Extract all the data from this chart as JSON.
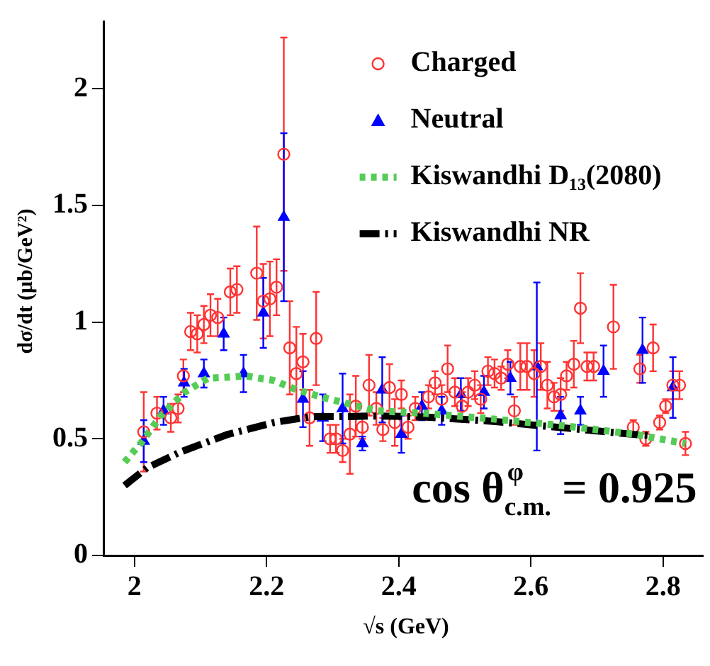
{
  "chart_data": {
    "type": "scatter",
    "xlabel": "√s (GeV)",
    "ylabel": "dσ/dt (μb/GeV²)",
    "xlim": [
      1.953,
      2.86
    ],
    "ylim": [
      0,
      2.29
    ],
    "xticks": [
      2,
      2.2,
      2.4,
      2.6,
      2.8
    ],
    "yticks": [
      0,
      0.5,
      1,
      1.5,
      2
    ],
    "grid": false,
    "legend": "top right",
    "annotations": [
      "cos θ$^{φ}$$_{c.m.}$ = 0.925"
    ],
    "series": [
      {
        "name": "Charged",
        "marker": "circle",
        "color": "#ff3333",
        "x": [
          2.014,
          2.034,
          2.055,
          2.066,
          2.074,
          2.085,
          2.095,
          2.105,
          2.115,
          2.126,
          2.145,
          2.155,
          2.185,
          2.195,
          2.205,
          2.215,
          2.226,
          2.235,
          2.245,
          2.255,
          2.265,
          2.275,
          2.296,
          2.305,
          2.315,
          2.326,
          2.335,
          2.345,
          2.355,
          2.366,
          2.376,
          2.386,
          2.394,
          2.404,
          2.414,
          2.425,
          2.445,
          2.455,
          2.465,
          2.474,
          2.485,
          2.496,
          2.505,
          2.515,
          2.524,
          2.535,
          2.545,
          2.555,
          2.565,
          2.575,
          2.584,
          2.594,
          2.605,
          2.615,
          2.625,
          2.635,
          2.645,
          2.654,
          2.665,
          2.675,
          2.685,
          2.695,
          2.725,
          2.755,
          2.765,
          2.774,
          2.785,
          2.795,
          2.804,
          2.815,
          2.825,
          2.834
        ],
        "values": [
          0.53,
          0.61,
          0.59,
          0.63,
          0.77,
          0.96,
          0.95,
          0.99,
          1.03,
          1.02,
          1.13,
          1.14,
          1.21,
          1.09,
          1.1,
          1.15,
          1.72,
          0.89,
          0.78,
          0.83,
          0.59,
          0.93,
          0.5,
          0.5,
          0.45,
          0.52,
          0.64,
          0.55,
          0.73,
          0.63,
          0.54,
          0.72,
          0.57,
          0.69,
          0.55,
          0.63,
          0.68,
          0.74,
          0.67,
          0.8,
          0.7,
          0.64,
          0.7,
          0.73,
          0.67,
          0.79,
          0.78,
          0.76,
          0.82,
          0.62,
          0.81,
          0.81,
          0.78,
          0.81,
          0.73,
          0.68,
          0.69,
          0.77,
          0.82,
          1.06,
          0.81,
          0.81,
          0.98,
          0.55,
          0.8,
          0.5,
          0.89,
          0.57,
          0.64,
          0.73,
          0.73,
          0.48
        ],
        "errors": [
          0.17,
          0.07,
          0.06,
          0.06,
          0.07,
          0.08,
          0.08,
          0.08,
          0.09,
          0.08,
          0.1,
          0.1,
          0.2,
          0.16,
          0.16,
          0.12,
          0.5,
          0.2,
          0.2,
          0.12,
          0.12,
          0.2,
          0.06,
          0.06,
          0.05,
          0.17,
          0.13,
          0.05,
          0.13,
          0.07,
          0.05,
          0.1,
          0.1,
          0.06,
          0.05,
          0.05,
          0.05,
          0.05,
          0.06,
          0.1,
          0.06,
          0.06,
          0.06,
          0.06,
          0.06,
          0.06,
          0.06,
          0.05,
          0.06,
          0.06,
          0.1,
          0.1,
          0.1,
          0.1,
          0.1,
          0.06,
          0.07,
          0.06,
          0.1,
          0.15,
          0.06,
          0.06,
          0.18,
          0.03,
          0.06,
          0.03,
          0.1,
          0.03,
          0.03,
          0.06,
          0.06,
          0.05
        ]
      },
      {
        "name": "Neutral",
        "marker": "triangle",
        "color": "#0000ff",
        "x": [
          2.014,
          2.044,
          2.075,
          2.105,
          2.135,
          2.165,
          2.195,
          2.226,
          2.255,
          2.285,
          2.315,
          2.345,
          2.375,
          2.404,
          2.435,
          2.465,
          2.494,
          2.529,
          2.569,
          2.609,
          2.645,
          2.675,
          2.71,
          2.769,
          2.815
        ],
        "values": [
          0.49,
          0.62,
          0.74,
          0.78,
          0.95,
          0.78,
          1.04,
          1.45,
          0.67,
          0.59,
          0.63,
          0.48,
          0.71,
          0.52,
          0.64,
          0.62,
          0.69,
          0.7,
          0.76,
          0.81,
          0.6,
          0.62,
          0.79,
          0.88,
          0.72
        ],
        "errors": [
          0.09,
          0.06,
          0.06,
          0.06,
          0.07,
          0.08,
          0.15,
          0.36,
          0.12,
          0.1,
          0.15,
          0.03,
          0.14,
          0.08,
          0.06,
          0.06,
          0.07,
          0.07,
          0.07,
          0.36,
          0.08,
          0.06,
          0.11,
          0.14,
          0.13
        ]
      },
      {
        "name": "Kiswandhi D₁₃(2080)",
        "type": "line",
        "line_style": "dotted",
        "color": "#55cc55",
        "x": [
          1.985,
          2.012,
          2.04,
          2.076,
          2.111,
          2.147,
          2.168,
          2.211,
          2.246,
          2.282,
          2.324,
          2.367,
          2.437,
          2.543,
          2.65,
          2.756,
          2.834
        ],
        "values": [
          0.4,
          0.49,
          0.6,
          0.7,
          0.76,
          0.765,
          0.77,
          0.75,
          0.71,
          0.68,
          0.65,
          0.62,
          0.61,
          0.585,
          0.556,
          0.52,
          0.48
        ]
      },
      {
        "name": "Kiswandhi NR",
        "type": "line",
        "line_style": "dashed",
        "color": "#000000",
        "x": [
          1.985,
          2.019,
          2.069,
          2.14,
          2.211,
          2.267,
          2.324,
          2.359,
          2.437,
          2.543,
          2.65,
          2.756,
          2.784
        ],
        "values": [
          0.3,
          0.376,
          0.443,
          0.518,
          0.57,
          0.595,
          0.595,
          0.598,
          0.594,
          0.575,
          0.547,
          0.519,
          0.513
        ]
      }
    ]
  }
}
